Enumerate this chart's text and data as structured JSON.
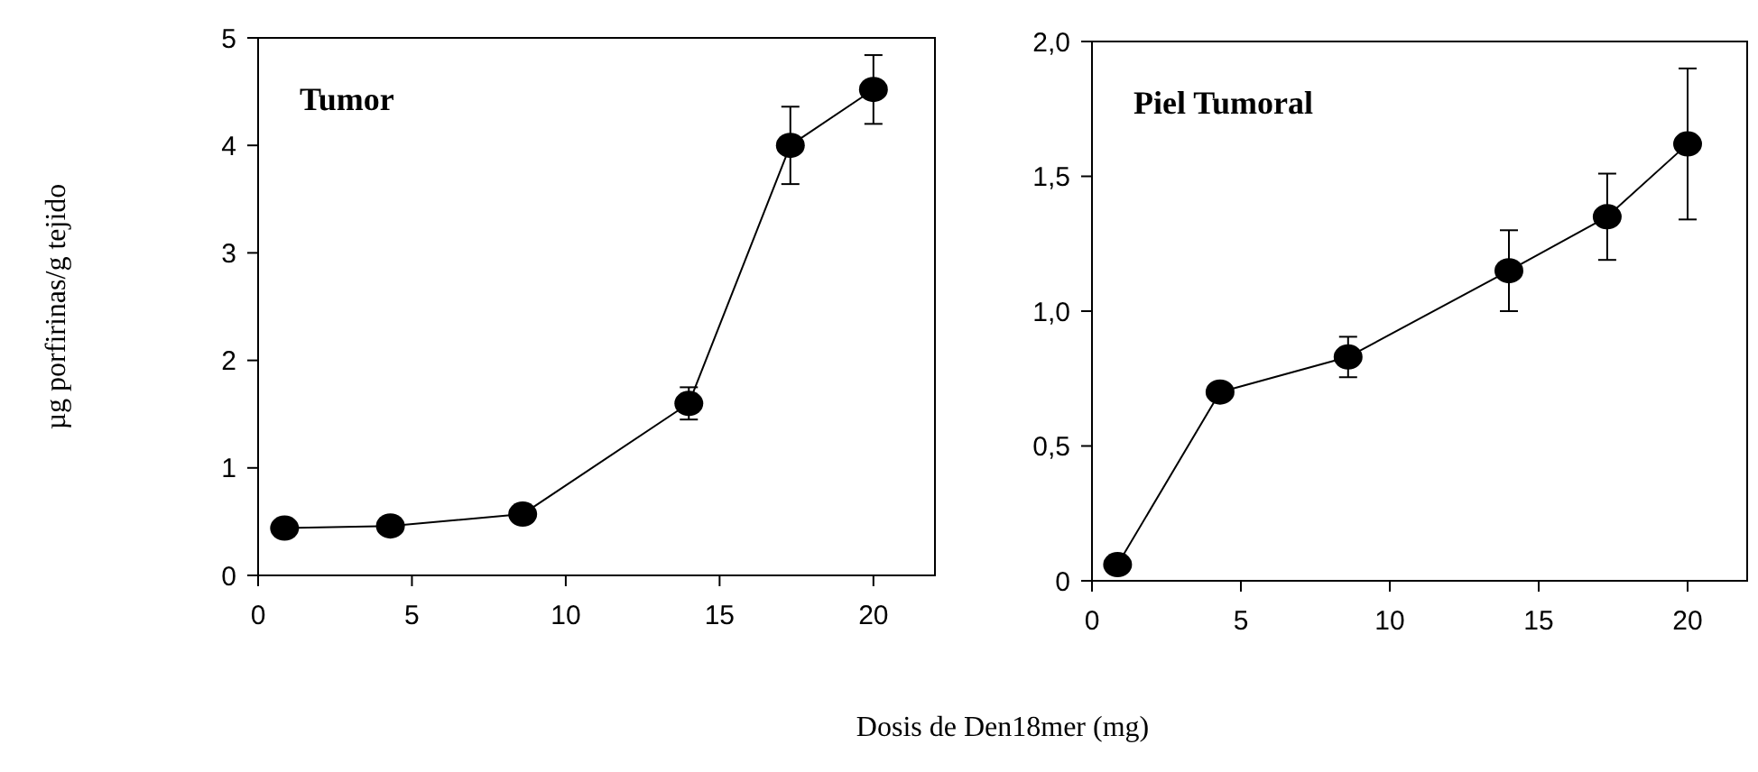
{
  "chart_data": [
    {
      "type": "line",
      "title": "Tumor",
      "ylabel": "µg porfirinas/g tejido",
      "xlabel": "Dosis de Den18mer (mg)",
      "x": [
        0.86,
        4.3,
        8.6,
        14,
        17.3,
        20
      ],
      "series": [
        {
          "color": "#000000",
          "values": [
            0.44,
            0.46,
            0.57,
            1.6,
            4.0,
            4.52
          ],
          "errors": [
            null,
            null,
            null,
            0.15,
            0.36,
            0.32
          ]
        }
      ],
      "xlim": [
        0,
        22
      ],
      "xticks": [
        0,
        5,
        10,
        15,
        20
      ],
      "ylim": [
        0,
        5
      ],
      "yticks": [
        0,
        1,
        2,
        3,
        4,
        5
      ],
      "marker": "circle",
      "line_style": "solid",
      "grid": false
    },
    {
      "type": "line",
      "title": "Piel Tumoral",
      "x": [
        0.86,
        4.3,
        8.6,
        14,
        17.3,
        20
      ],
      "series": [
        {
          "color": "#000000",
          "values": [
            0.06,
            0.7,
            0.83,
            1.15,
            1.35,
            1.62
          ],
          "errors": [
            null,
            null,
            0.075,
            0.15,
            0.16,
            0.28
          ]
        }
      ],
      "xlim": [
        0,
        22
      ],
      "xticks": [
        0,
        5,
        10,
        15,
        20
      ],
      "ylim": [
        0,
        2
      ],
      "yticks": [
        {
          "value": 0,
          "label": "0"
        },
        {
          "value": 0.5,
          "label": "0,5"
        },
        {
          "value": 1,
          "label": "1,0"
        },
        {
          "value": 1.5,
          "label": "1,5"
        },
        {
          "value": 2,
          "label": "2,0"
        }
      ],
      "marker": "circle",
      "line_style": "solid",
      "grid": false
    }
  ]
}
